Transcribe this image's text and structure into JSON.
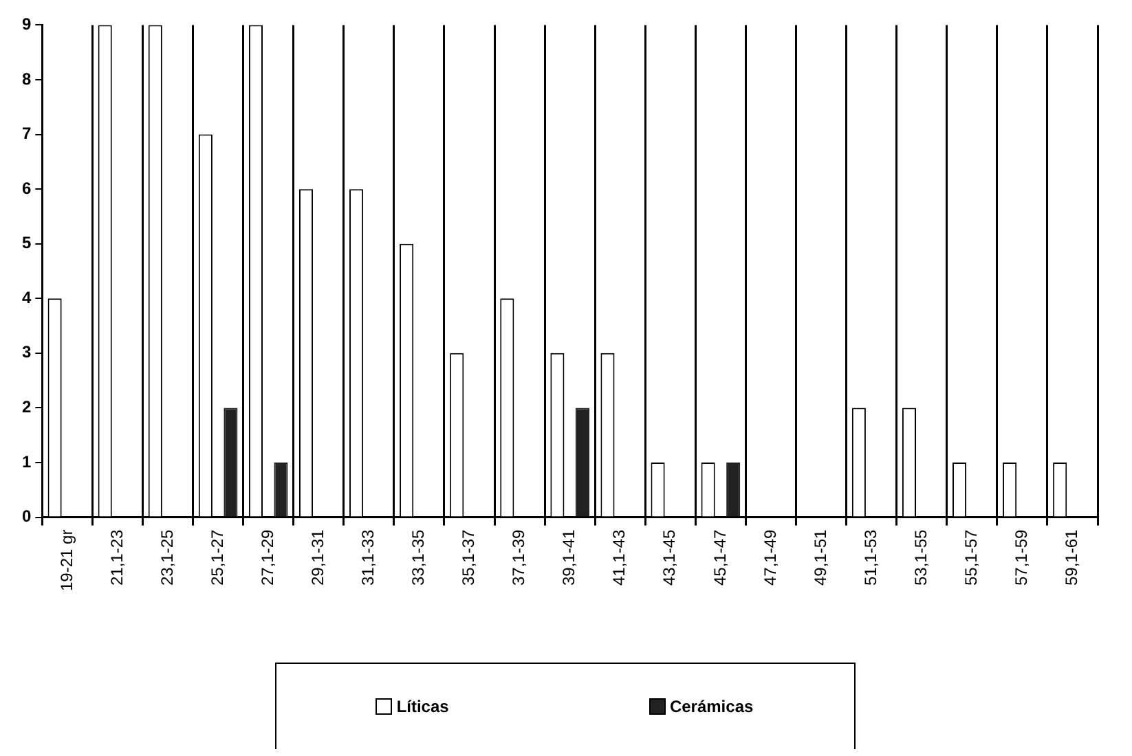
{
  "chart_data": {
    "type": "bar",
    "categories": [
      "19-21 gr",
      "21,1-23",
      "23,1-25",
      "25,1-27",
      "27,1-29",
      "29,1-31",
      "31,1-33",
      "33,1-35",
      "35,1-37",
      "37,1-39",
      "39,1-41",
      "41,1-43",
      "43,1-45",
      "45,1-47",
      "47,1-49",
      "49,1-51",
      "51,1-53",
      "53,1-55",
      "55,1-57",
      "57,1-59",
      "59,1-61"
    ],
    "series": [
      {
        "name": "Líticas",
        "color": "#ffffff",
        "values": [
          4,
          9,
          9,
          7,
          9,
          6,
          6,
          5,
          3,
          4,
          3,
          3,
          1,
          1,
          0,
          0,
          2,
          2,
          1,
          1,
          1
        ]
      },
      {
        "name": "Cerámicas",
        "color": "#222222",
        "values": [
          0,
          0,
          0,
          2,
          1,
          0,
          0,
          0,
          0,
          0,
          2,
          0,
          0,
          1,
          0,
          0,
          0,
          0,
          0,
          0,
          0
        ]
      }
    ],
    "ylim": [
      0,
      9
    ],
    "yticks": [
      0,
      1,
      2,
      3,
      4,
      5,
      6,
      7,
      8,
      9
    ],
    "grid": "x",
    "legend": "bottom"
  }
}
